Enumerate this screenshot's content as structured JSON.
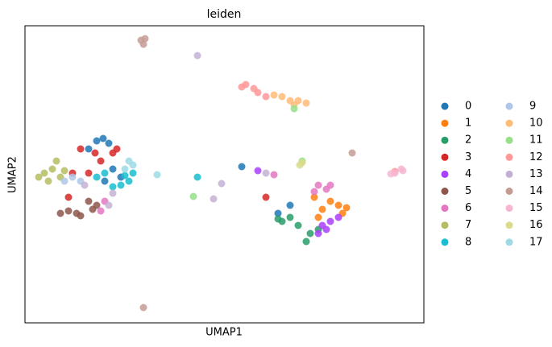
{
  "chart_data": {
    "type": "scatter",
    "title": "leiden",
    "x_label": "UMAP1",
    "y_label": "UMAP2",
    "xlim": [
      0,
      495
    ],
    "ylim": [
      0,
      369
    ],
    "legend": "right",
    "series": [
      {
        "name": "0",
        "color": "#1f77b4",
        "x": [
          89,
          79,
          104,
          97,
          119,
          109,
          99,
          314,
          329,
          269
        ],
        "values": [
          226,
          216,
          223,
          229,
          181,
          191,
          176,
          136,
          146,
          194
        ]
      },
      {
        "name": "1",
        "color": "#ff7f0e",
        "x": [
          369,
          379,
          389,
          364,
          394,
          359,
          399
        ],
        "values": [
          141,
          151,
          146,
          131,
          136,
          156,
          143
        ]
      },
      {
        "name": "2",
        "color": "#279e68",
        "x": [
          319,
          339,
          354,
          349,
          329,
          364,
          314
        ],
        "values": [
          126,
          121,
          111,
          101,
          131,
          116,
          129
        ]
      },
      {
        "name": "3",
        "color": "#d62728",
        "x": [
          69,
          109,
          94,
          59,
          79,
          114,
          54,
          299,
          87
        ],
        "values": [
          216,
          211,
          201,
          186,
          186,
          216,
          156,
          156,
          211
        ]
      },
      {
        "name": "4",
        "color": "#aa40fc",
        "x": [
          369,
          379,
          364,
          389,
          374,
          289
        ],
        "values": [
          121,
          126,
          111,
          131,
          116,
          189
        ]
      },
      {
        "name": "5",
        "color": "#8c564b",
        "x": [
          64,
          54,
          69,
          89,
          84,
          79,
          44
        ],
        "values": [
          136,
          139,
          133,
          146,
          141,
          151,
          136
        ]
      },
      {
        "name": "6",
        "color": "#e377c2",
        "x": [
          364,
          374,
          359,
          379,
          99,
          94,
          309
        ],
        "values": [
          171,
          166,
          163,
          171,
          151,
          139,
          184
        ]
      },
      {
        "name": "7",
        "color": "#b5bd61",
        "x": [
          34,
          24,
          44,
          29,
          39,
          49,
          17
        ],
        "values": [
          191,
          186,
          181,
          176,
          201,
          189,
          181
        ]
      },
      {
        "name": "8",
        "color": "#17becf",
        "x": [
          119,
          129,
          109,
          99,
          89,
          134,
          214,
          124
        ],
        "values": [
          171,
          176,
          169,
          186,
          181,
          186,
          181,
          183
        ]
      },
      {
        "name": "9",
        "color": "#aec7e8",
        "x": [
          59,
          69,
          49
        ],
        "values": [
          181,
          176,
          176
        ]
      },
      {
        "name": "10",
        "color": "#ffbb78",
        "x": [
          319,
          329,
          339,
          349,
          309,
          334
        ],
        "values": [
          281,
          276,
          276,
          273,
          283,
          271
        ]
      },
      {
        "name": "11",
        "color": "#98df8a",
        "x": [
          334,
          344,
          209
        ],
        "values": [
          266,
          201,
          157
        ]
      },
      {
        "name": "12",
        "color": "#ff9896",
        "x": [
          274,
          284,
          289,
          269,
          299,
          459
        ],
        "values": [
          296,
          291,
          286,
          293,
          281,
          188
        ]
      },
      {
        "name": "13",
        "color": "#c5b0d5",
        "x": [
          109,
          104,
          74,
          299,
          234,
          244,
          214
        ],
        "values": [
          161,
          146,
          171,
          186,
          154,
          173,
          332
        ]
      },
      {
        "name": "14",
        "color": "#c49c94",
        "x": [
          144,
          147,
          149,
          147,
          406
        ],
        "values": [
          351,
          346,
          353,
          19,
          211
        ]
      },
      {
        "name": "15",
        "color": "#f7b6d2",
        "x": [
          459,
          469,
          454,
          467
        ],
        "values": [
          186,
          189,
          185,
          191
        ]
      },
      {
        "name": "16",
        "color": "#dbdb8d",
        "x": [
          344,
          341
        ],
        "values": [
          199,
          196
        ]
      },
      {
        "name": "17",
        "color": "#9edae5",
        "x": [
          129,
          134,
          124,
          164
        ],
        "values": [
          201,
          196,
          191,
          184
        ]
      }
    ]
  }
}
